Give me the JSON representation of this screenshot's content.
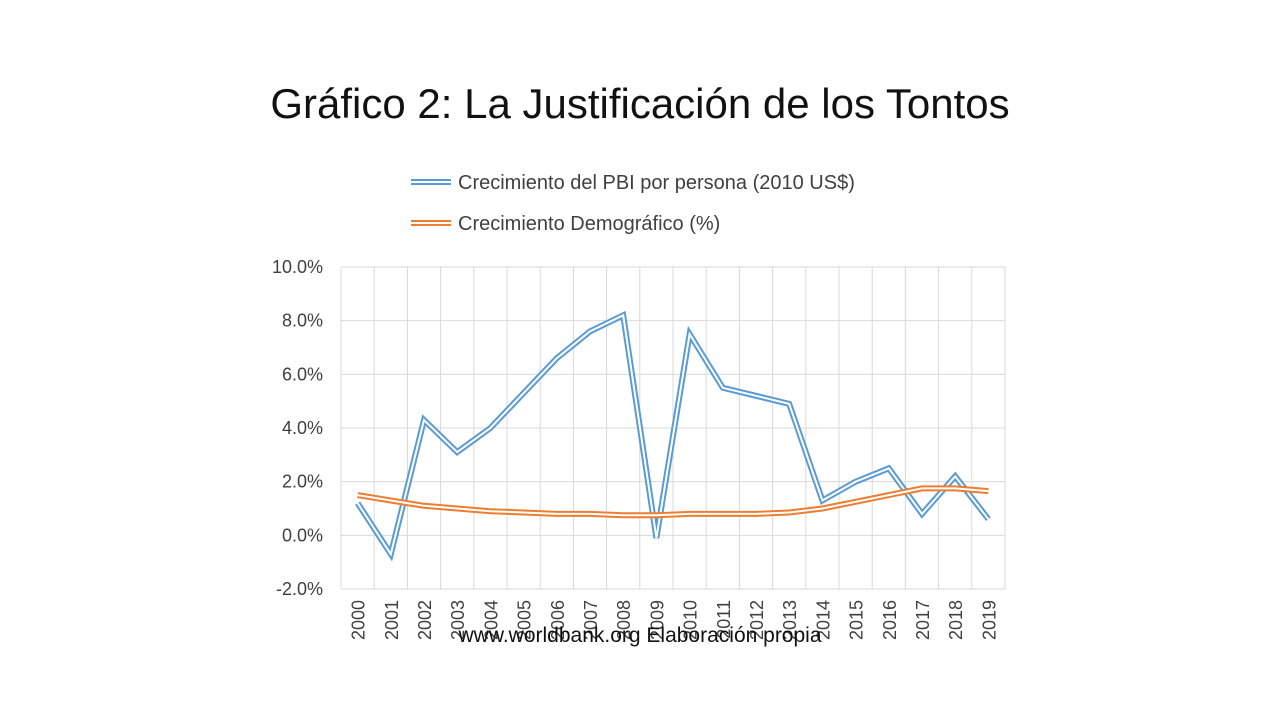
{
  "slide": {
    "title": "Gráfico 2: La Justificación de los Tontos",
    "source": "www.worldbank.org Elaboración propia"
  },
  "chart_data": {
    "type": "line",
    "title": "",
    "xlabel": "",
    "ylabel": "",
    "categories": [
      "2000",
      "2001",
      "2002",
      "2003",
      "2004",
      "2005",
      "2006",
      "2007",
      "2008",
      "2009",
      "2010",
      "2011",
      "2012",
      "2013",
      "2014",
      "2015",
      "2016",
      "2017",
      "2018",
      "2019"
    ],
    "ylim": [
      -0.02,
      0.1
    ],
    "y_ticks": [
      -0.02,
      0.0,
      0.02,
      0.04,
      0.06,
      0.08,
      0.1
    ],
    "y_tick_labels": [
      "-2.0%",
      "0.0%",
      "2.0%",
      "4.0%",
      "6.0%",
      "8.0%",
      "10.0%"
    ],
    "grid": true,
    "legend_position": "top",
    "series": [
      {
        "name": "Crecimiento del PBI por persona (2010 US$)",
        "color": "#5b9bd5",
        "values": [
          0.012,
          -0.007,
          0.043,
          0.031,
          0.04,
          0.053,
          0.066,
          0.076,
          0.082,
          -0.001,
          0.075,
          0.055,
          0.052,
          0.049,
          0.013,
          0.02,
          0.025,
          0.008,
          0.022,
          0.006
        ]
      },
      {
        "name": "Crecimiento Demográfico (%)",
        "color": "#ed7d31",
        "values": [
          0.015,
          0.013,
          0.011,
          0.01,
          0.009,
          0.0085,
          0.008,
          0.008,
          0.0075,
          0.0075,
          0.008,
          0.008,
          0.008,
          0.0085,
          0.01,
          0.0125,
          0.015,
          0.0175,
          0.0175,
          0.0165
        ]
      }
    ]
  }
}
